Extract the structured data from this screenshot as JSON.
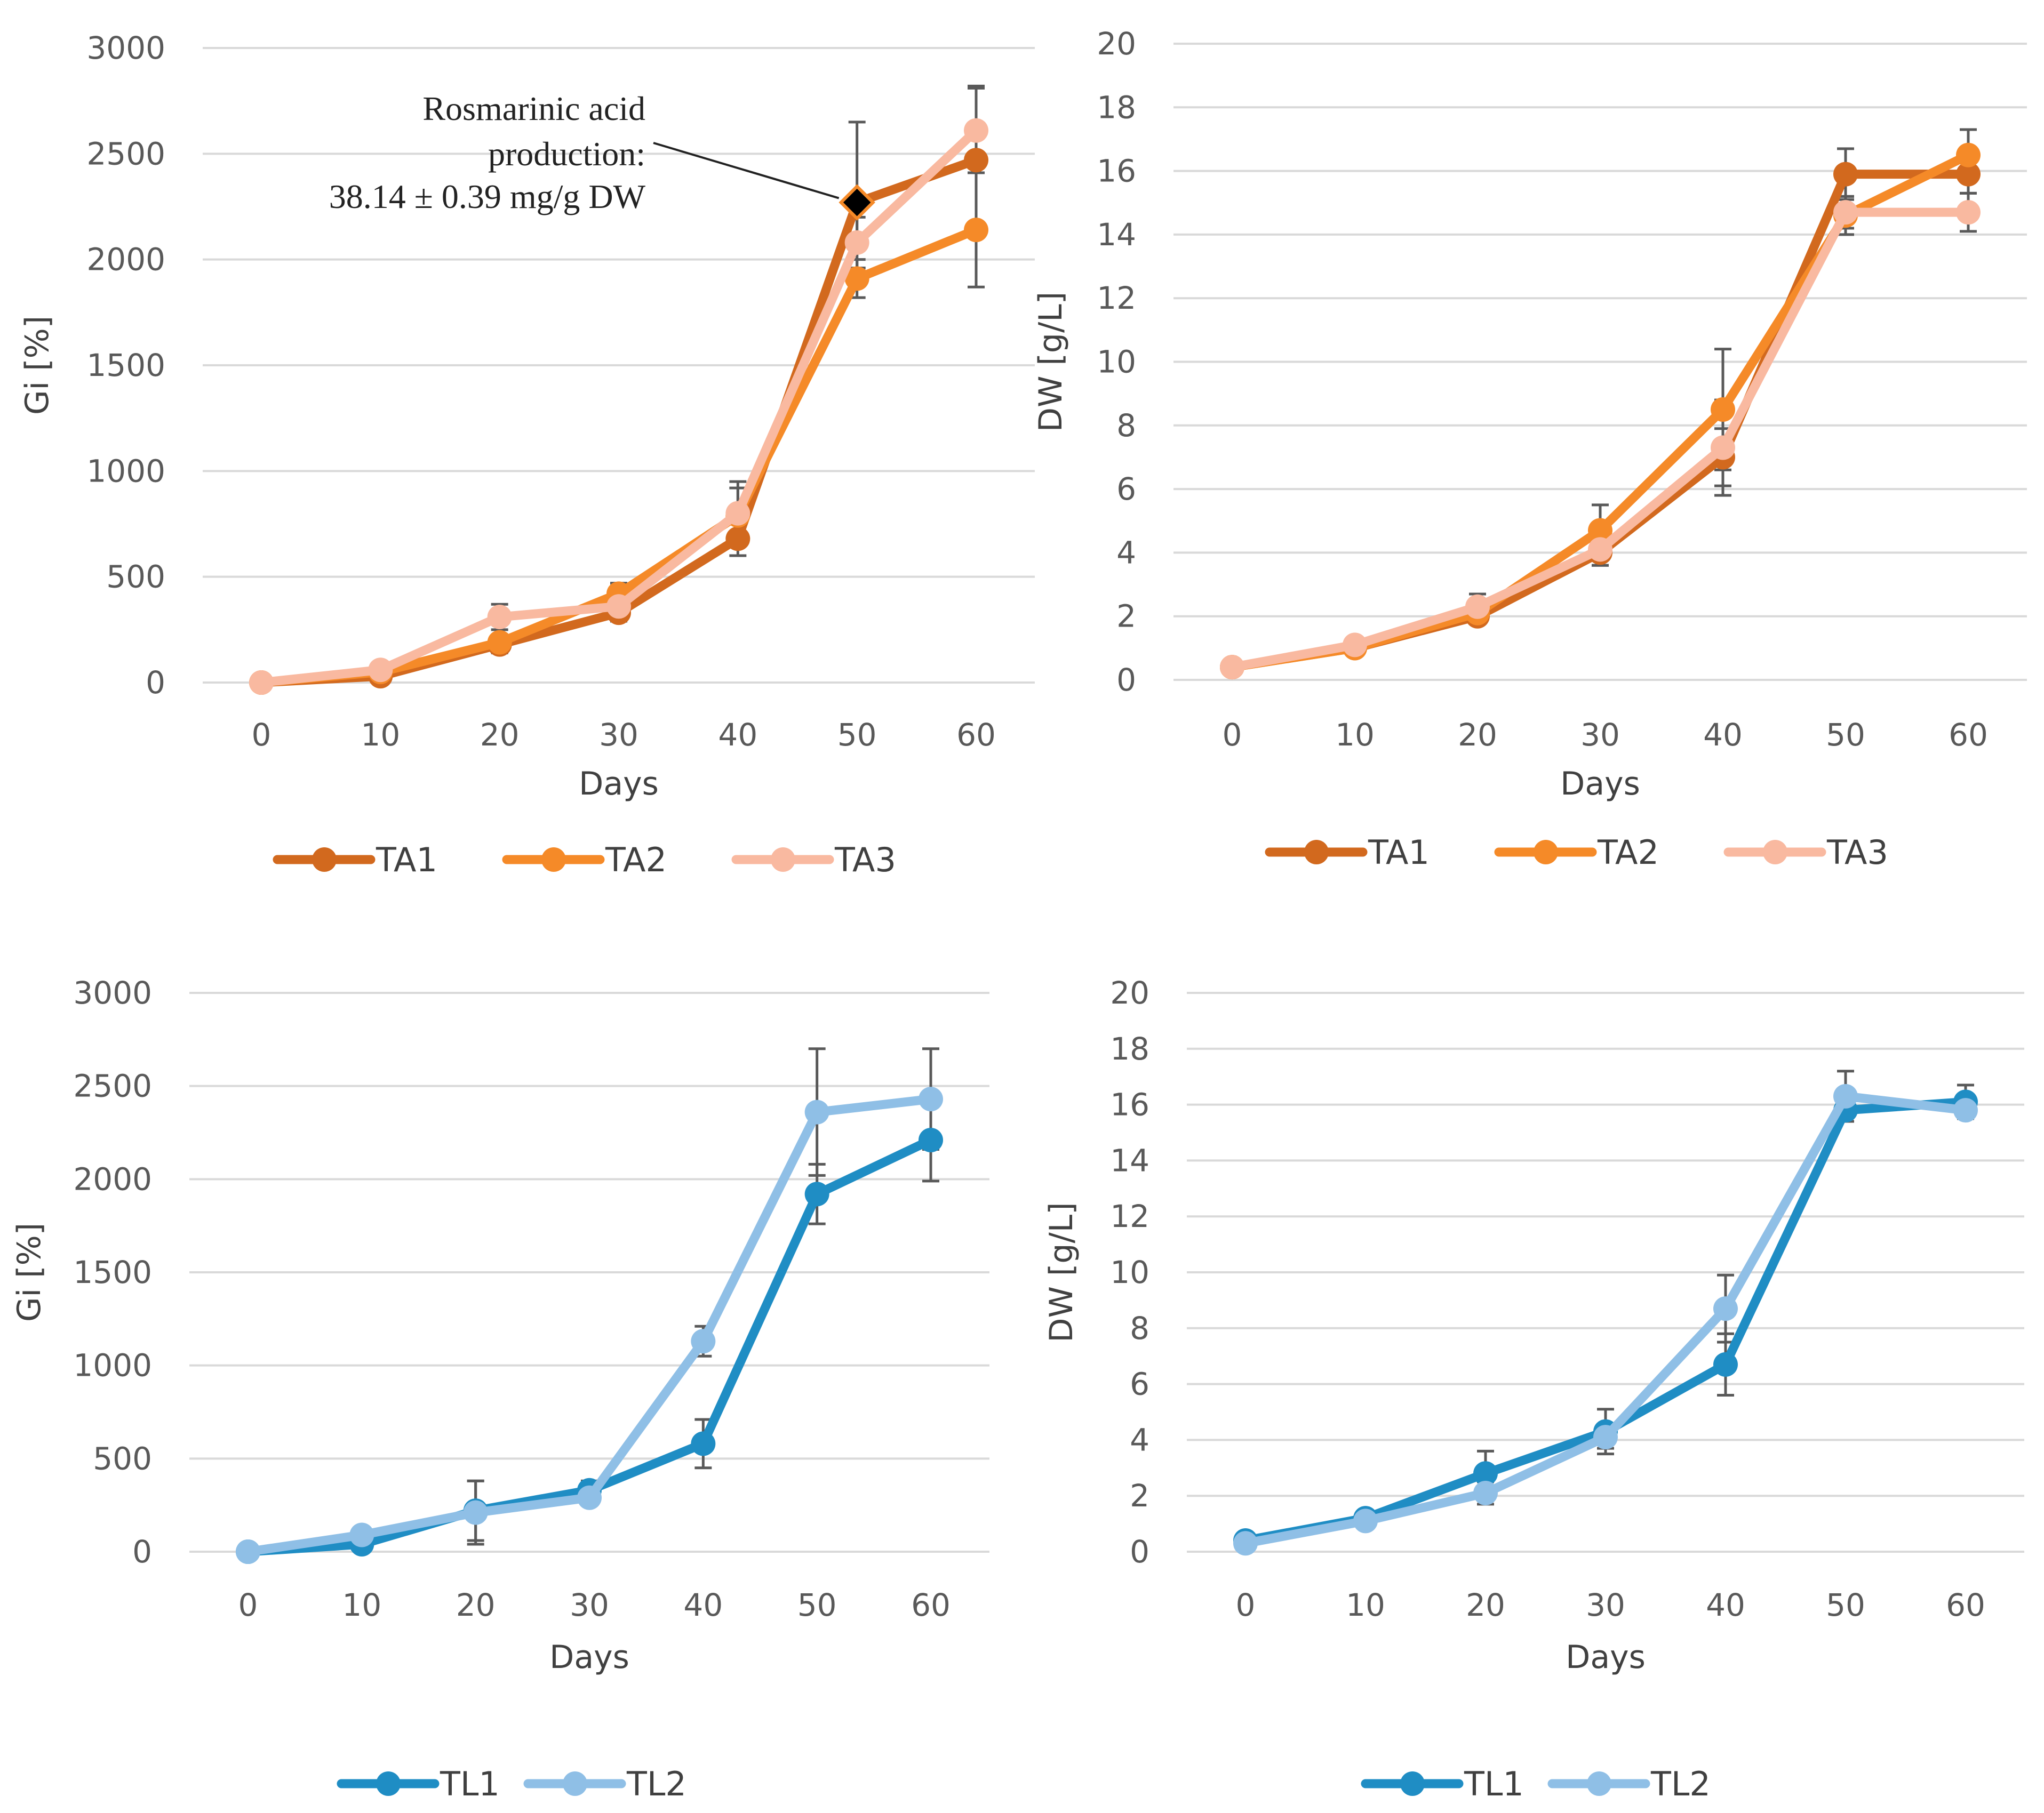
{
  "colors": {
    "TA1": "#d2691e",
    "TA2": "#f58a28",
    "TA3": "#f9b9a0",
    "TL1": "#1f8dc4",
    "TL2": "#8fbfe6",
    "error_bar": "#595959",
    "marker_highlight": "#000000"
  },
  "chart_data": [
    {
      "id": "gi-ta",
      "type": "line",
      "xlabel": "Days",
      "ylabel": "Gi [%]",
      "x": [
        0,
        10,
        20,
        30,
        40,
        50,
        60
      ],
      "xlim": [
        0,
        60
      ],
      "ylim": [
        0,
        3000
      ],
      "yticks": [
        0,
        500,
        1000,
        1500,
        2000,
        2500,
        3000
      ],
      "grid": true,
      "legend_position": "bottom",
      "series": [
        {
          "name": "TA1",
          "values": [
            0,
            30,
            180,
            330,
            680,
            2270,
            2470
          ],
          "errors": [
            0,
            10,
            40,
            40,
            80,
            380,
            350
          ]
        },
        {
          "name": "TA2",
          "values": [
            0,
            50,
            190,
            420,
            790,
            1910,
            2140
          ],
          "errors": [
            0,
            10,
            30,
            50,
            130,
            90,
            270
          ]
        },
        {
          "name": "TA3",
          "values": [
            0,
            60,
            310,
            360,
            800,
            2080,
            2610
          ],
          "errors": [
            0,
            10,
            60,
            50,
            150,
            120,
            200
          ]
        }
      ],
      "annotation": {
        "lines": [
          "Rosmarinic acid",
          "production:",
          "38.14 ± 0.39 mg/g DW"
        ],
        "series": "TA1",
        "point_x": 50,
        "point_y": 2270
      }
    },
    {
      "id": "dw-ta",
      "type": "line",
      "xlabel": "Days",
      "ylabel": "DW [g/L]",
      "x": [
        0,
        10,
        20,
        30,
        40,
        50,
        60
      ],
      "xlim": [
        0,
        60
      ],
      "ylim": [
        0,
        20
      ],
      "yticks": [
        0,
        2,
        4,
        6,
        8,
        10,
        12,
        14,
        16,
        18,
        20
      ],
      "grid": true,
      "legend_position": "bottom",
      "series": [
        {
          "name": "TA1",
          "values": [
            0.4,
            1.0,
            2.0,
            4.0,
            7.0,
            15.9,
            15.9
          ],
          "errors": [
            0.05,
            0.1,
            0.2,
            0.4,
            0.9,
            0.8,
            0.6
          ]
        },
        {
          "name": "TA2",
          "values": [
            0.4,
            1.0,
            2.1,
            4.7,
            8.5,
            14.6,
            16.5
          ],
          "errors": [
            0.05,
            0.1,
            0.2,
            0.8,
            1.9,
            0.6,
            0.8
          ]
        },
        {
          "name": "TA3",
          "values": [
            0.4,
            1.1,
            2.3,
            4.1,
            7.3,
            14.7,
            14.7
          ],
          "errors": [
            0.05,
            0.1,
            0.4,
            0.5,
            1.5,
            0.5,
            0.6
          ]
        }
      ]
    },
    {
      "id": "gi-tl",
      "type": "line",
      "xlabel": "Days",
      "ylabel": "Gi [%]",
      "x": [
        0,
        10,
        20,
        30,
        40,
        50,
        60
      ],
      "xlim": [
        0,
        60
      ],
      "ylim": [
        0,
        3000
      ],
      "yticks": [
        0,
        500,
        1000,
        1500,
        2000,
        2500,
        3000
      ],
      "grid": true,
      "legend_position": "bottom",
      "series": [
        {
          "name": "TL1",
          "values": [
            0,
            40,
            220,
            330,
            580,
            1920,
            2210
          ],
          "errors": [
            0,
            10,
            160,
            50,
            130,
            160,
            220
          ]
        },
        {
          "name": "TL2",
          "values": [
            0,
            90,
            210,
            290,
            1130,
            2360,
            2430
          ],
          "errors": [
            0,
            15,
            170,
            40,
            80,
            340,
            270
          ]
        }
      ]
    },
    {
      "id": "dw-tl",
      "type": "line",
      "xlabel": "Days",
      "ylabel": "DW [g/L]",
      "x": [
        0,
        10,
        20,
        30,
        40,
        50,
        60
      ],
      "xlim": [
        0,
        60
      ],
      "ylim": [
        0,
        20
      ],
      "yticks": [
        0,
        2,
        4,
        6,
        8,
        10,
        12,
        14,
        16,
        18,
        20
      ],
      "grid": true,
      "legend_position": "bottom",
      "series": [
        {
          "name": "TL1",
          "values": [
            0.4,
            1.2,
            2.8,
            4.3,
            6.7,
            15.8,
            16.1
          ],
          "errors": [
            0.05,
            0.1,
            0.8,
            0.8,
            1.1,
            0.4,
            0.6
          ]
        },
        {
          "name": "TL2",
          "values": [
            0.3,
            1.1,
            2.1,
            4.1,
            8.7,
            16.3,
            15.8
          ],
          "errors": [
            0.05,
            0.1,
            0.4,
            0.4,
            1.2,
            0.9,
            0.3
          ]
        }
      ]
    }
  ]
}
